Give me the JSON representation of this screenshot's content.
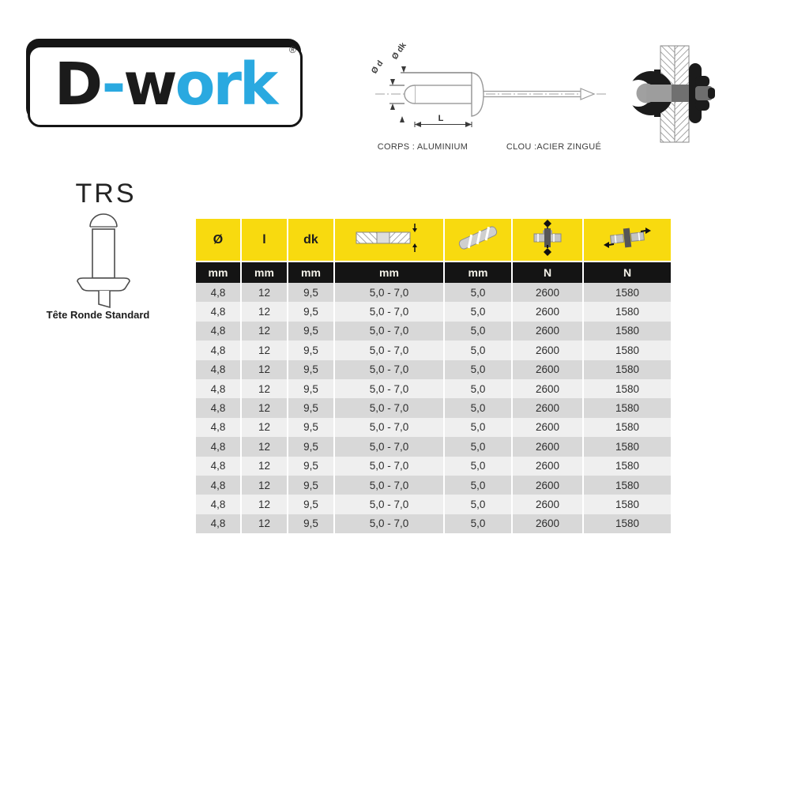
{
  "page": {
    "background": "#ffffff"
  },
  "logo": {
    "parts": [
      {
        "text": "D",
        "color": "#1b1b1b"
      },
      {
        "text": "-",
        "color": "#2aa9e0"
      },
      {
        "text": "w",
        "color": "#1b1b1b"
      },
      {
        "text": "ork",
        "color": "#2aa9e0"
      }
    ],
    "registered_mark": "®",
    "accent_blue": "#2aa9e0",
    "border_color": "#151515"
  },
  "technical_drawing": {
    "dim_label_d": "Ø d",
    "dim_label_dk": "Ø dk",
    "dim_label_length": "L",
    "body_material_label": "CORPS : ALUMINIUM",
    "nail_material_label": "CLOU :ACIER ZINGUÉ"
  },
  "product": {
    "code": "TRS",
    "head_type_caption": "Tête Ronde Standard"
  },
  "spec_table": {
    "colors": {
      "header_bg": "#f8da0f",
      "units_bg": "#141414",
      "row_odd_bg": "#d8d8d8",
      "row_even_bg": "#efefef"
    },
    "columns": [
      {
        "symbol": "Ø",
        "icon": null,
        "unit": "mm"
      },
      {
        "symbol": "l",
        "icon": null,
        "unit": "mm"
      },
      {
        "symbol": "dk",
        "icon": null,
        "unit": "mm"
      },
      {
        "symbol": "",
        "icon": "grip-range-icon",
        "unit": "mm"
      },
      {
        "symbol": "",
        "icon": "drill-bit-icon",
        "unit": "mm"
      },
      {
        "symbol": "",
        "icon": "tensile-strength-icon",
        "unit": "N"
      },
      {
        "symbol": "",
        "icon": "shear-strength-icon",
        "unit": "N"
      }
    ],
    "rows": [
      [
        "4,8",
        "12",
        "9,5",
        "5,0 - 7,0",
        "5,0",
        "2600",
        "1580"
      ],
      [
        "4,8",
        "12",
        "9,5",
        "5,0 - 7,0",
        "5,0",
        "2600",
        "1580"
      ],
      [
        "4,8",
        "12",
        "9,5",
        "5,0 - 7,0",
        "5,0",
        "2600",
        "1580"
      ],
      [
        "4,8",
        "12",
        "9,5",
        "5,0 - 7,0",
        "5,0",
        "2600",
        "1580"
      ],
      [
        "4,8",
        "12",
        "9,5",
        "5,0 - 7,0",
        "5,0",
        "2600",
        "1580"
      ],
      [
        "4,8",
        "12",
        "9,5",
        "5,0 - 7,0",
        "5,0",
        "2600",
        "1580"
      ],
      [
        "4,8",
        "12",
        "9,5",
        "5,0 - 7,0",
        "5,0",
        "2600",
        "1580"
      ],
      [
        "4,8",
        "12",
        "9,5",
        "5,0 - 7,0",
        "5,0",
        "2600",
        "1580"
      ],
      [
        "4,8",
        "12",
        "9,5",
        "5,0 - 7,0",
        "5,0",
        "2600",
        "1580"
      ],
      [
        "4,8",
        "12",
        "9,5",
        "5,0 - 7,0",
        "5,0",
        "2600",
        "1580"
      ],
      [
        "4,8",
        "12",
        "9,5",
        "5,0 - 7,0",
        "5,0",
        "2600",
        "1580"
      ],
      [
        "4,8",
        "12",
        "9,5",
        "5,0 - 7,0",
        "5,0",
        "2600",
        "1580"
      ],
      [
        "4,8",
        "12",
        "9,5",
        "5,0 - 7,0",
        "5,0",
        "2600",
        "1580"
      ]
    ]
  }
}
